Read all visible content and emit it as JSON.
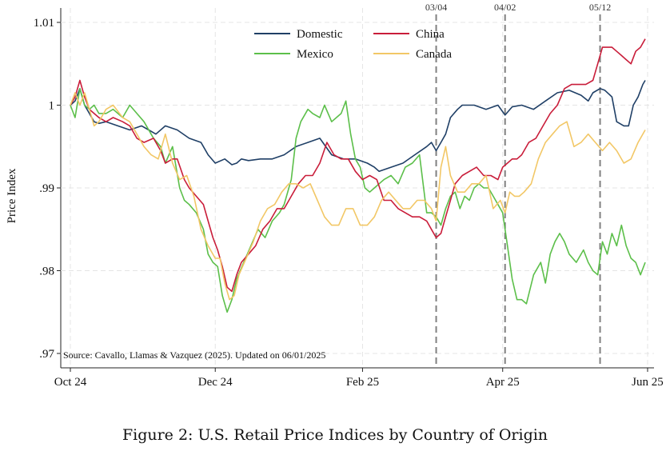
{
  "chart_data": {
    "type": "line",
    "title": "",
    "ylabel": "Price Index",
    "xlabel": "",
    "ylim": [
      0.97,
      1.01
    ],
    "xlim": [
      0,
      242
    ],
    "x_ticks": [
      {
        "label": "Oct 24",
        "x": 0
      },
      {
        "label": "Dec 24",
        "x": 61
      },
      {
        "label": "Feb 25",
        "x": 123
      },
      {
        "label": "Apr 25",
        "x": 182
      },
      {
        "label": "Jun 25",
        "x": 243
      }
    ],
    "y_ticks": [
      {
        "label": ".97",
        "value": 0.97
      },
      {
        "label": ".98",
        "value": 0.98
      },
      {
        "label": ".99",
        "value": 0.99
      },
      {
        "label": "1",
        "value": 1.0
      },
      {
        "label": "1.01",
        "value": 1.01
      }
    ],
    "vlines": [
      {
        "label": "03/04",
        "x": 154
      },
      {
        "label": "04/02",
        "x": 183
      },
      {
        "label": "05/12",
        "x": 223
      }
    ],
    "legend_position": "top-center",
    "annotation": "Source: Cavallo, Llamas & Vazquez (2025). Updated on 06/01/2025",
    "series": [
      {
        "name": "Domestic",
        "color": "#1f3f66",
        "x": [
          0,
          2,
          4,
          6,
          8,
          10,
          12,
          15,
          20,
          25,
          30,
          33,
          36,
          40,
          45,
          50,
          55,
          58,
          61,
          65,
          68,
          70,
          72,
          75,
          80,
          85,
          90,
          95,
          100,
          105,
          110,
          115,
          120,
          125,
          128,
          130,
          135,
          140,
          145,
          150,
          152,
          154,
          156,
          158,
          160,
          163,
          165,
          170,
          175,
          180,
          183,
          186,
          190,
          195,
          200,
          205,
          210,
          215,
          218,
          220,
          223,
          225,
          228,
          230,
          233,
          235,
          237,
          239,
          241,
          242
        ],
        "values": [
          1.0,
          1.0005,
          1.002,
          1.0,
          0.999,
          0.998,
          0.9978,
          0.998,
          0.9975,
          0.997,
          0.9975,
          0.997,
          0.9965,
          0.9975,
          0.997,
          0.996,
          0.9955,
          0.994,
          0.993,
          0.9935,
          0.9928,
          0.993,
          0.9935,
          0.9933,
          0.9935,
          0.9935,
          0.994,
          0.995,
          0.9955,
          0.996,
          0.994,
          0.9935,
          0.9935,
          0.993,
          0.9925,
          0.992,
          0.9925,
          0.993,
          0.994,
          0.995,
          0.9955,
          0.9945,
          0.9955,
          0.9965,
          0.9985,
          0.9995,
          1.0,
          1.0,
          0.9995,
          1.0,
          0.9988,
          0.9998,
          1.0,
          0.9995,
          1.0005,
          1.0015,
          1.0018,
          1.0012,
          1.0005,
          1.0015,
          1.002,
          1.0018,
          1.001,
          0.998,
          0.9975,
          0.9975,
          1.0,
          1.001,
          1.0025,
          1.003
        ]
      },
      {
        "name": "Mexico",
        "color": "#5cbf4a",
        "x": [
          0,
          2,
          4,
          6,
          8,
          10,
          12,
          15,
          18,
          22,
          25,
          28,
          31,
          35,
          38,
          40,
          43,
          46,
          48,
          50,
          53,
          56,
          58,
          60,
          62,
          64,
          66,
          68,
          70,
          73,
          76,
          79,
          82,
          85,
          88,
          90,
          93,
          95,
          97,
          100,
          102,
          105,
          107,
          110,
          112,
          114,
          116,
          118,
          120,
          122,
          124,
          126,
          128,
          130,
          132,
          135,
          138,
          141,
          144,
          147,
          150,
          152,
          154,
          156,
          158,
          160,
          162,
          164,
          166,
          168,
          170,
          172,
          174,
          176,
          178,
          180,
          182,
          184,
          186,
          188,
          190,
          192,
          195,
          198,
          200,
          202,
          204,
          206,
          208,
          210,
          213,
          216,
          218,
          220,
          222,
          224,
          226,
          228,
          230,
          232,
          234,
          236,
          238,
          240,
          242
        ],
        "values": [
          1.0,
          0.9985,
          1.002,
          1.0,
          0.9995,
          1.0,
          0.999,
          0.999,
          0.9995,
          0.9985,
          1.0,
          0.999,
          0.998,
          0.996,
          0.995,
          0.993,
          0.995,
          0.99,
          0.9885,
          0.988,
          0.987,
          0.985,
          0.982,
          0.981,
          0.9805,
          0.977,
          0.975,
          0.9765,
          0.979,
          0.981,
          0.983,
          0.985,
          0.984,
          0.986,
          0.987,
          0.988,
          0.991,
          0.996,
          0.998,
          0.9995,
          0.999,
          0.9985,
          1.0,
          0.998,
          0.9985,
          0.999,
          1.0005,
          0.9965,
          0.9935,
          0.9925,
          0.99,
          0.9895,
          0.99,
          0.9905,
          0.991,
          0.9915,
          0.9905,
          0.9925,
          0.993,
          0.994,
          0.987,
          0.987,
          0.9865,
          0.9855,
          0.9875,
          0.989,
          0.9895,
          0.9875,
          0.989,
          0.9885,
          0.99,
          0.9905,
          0.99,
          0.99,
          0.989,
          0.988,
          0.987,
          0.983,
          0.979,
          0.9765,
          0.9765,
          0.976,
          0.9795,
          0.981,
          0.9785,
          0.982,
          0.9835,
          0.9845,
          0.9835,
          0.982,
          0.981,
          0.9825,
          0.981,
          0.98,
          0.9795,
          0.9835,
          0.982,
          0.9845,
          0.983,
          0.9855,
          0.983,
          0.9815,
          0.981,
          0.9795,
          0.981
        ]
      },
      {
        "name": "China",
        "color": "#c91d3a",
        "x": [
          0,
          2,
          4,
          6,
          8,
          10,
          12,
          15,
          18,
          22,
          25,
          28,
          31,
          35,
          38,
          40,
          43,
          45,
          48,
          50,
          53,
          56,
          58,
          60,
          62,
          64,
          66,
          68,
          70,
          72,
          75,
          78,
          81,
          84,
          87,
          90,
          93,
          96,
          99,
          102,
          105,
          108,
          111,
          114,
          117,
          120,
          123,
          126,
          129,
          132,
          135,
          138,
          141,
          144,
          147,
          150,
          152,
          154,
          156,
          158,
          160,
          162,
          165,
          168,
          171,
          174,
          177,
          180,
          182,
          184,
          186,
          188,
          190,
          193,
          196,
          199,
          202,
          205,
          208,
          211,
          214,
          217,
          220,
          222,
          224,
          226,
          228,
          230,
          232,
          234,
          236,
          238,
          240,
          242
        ],
        "values": [
          1.0,
          1.001,
          1.003,
          1.001,
          0.9995,
          0.999,
          0.9985,
          0.998,
          0.9985,
          0.998,
          0.9975,
          0.996,
          0.9955,
          0.996,
          0.9945,
          0.993,
          0.9935,
          0.9935,
          0.991,
          0.99,
          0.989,
          0.988,
          0.986,
          0.984,
          0.9825,
          0.9805,
          0.978,
          0.9775,
          0.9795,
          0.981,
          0.982,
          0.983,
          0.985,
          0.986,
          0.9875,
          0.9875,
          0.989,
          0.9905,
          0.9915,
          0.9915,
          0.993,
          0.9955,
          0.994,
          0.9935,
          0.9935,
          0.992,
          0.991,
          0.9915,
          0.991,
          0.9885,
          0.9885,
          0.9875,
          0.987,
          0.9865,
          0.9865,
          0.986,
          0.985,
          0.984,
          0.9845,
          0.9865,
          0.9885,
          0.9905,
          0.9915,
          0.992,
          0.9925,
          0.9915,
          0.9915,
          0.991,
          0.9925,
          0.993,
          0.9935,
          0.9935,
          0.994,
          0.9955,
          0.996,
          0.9975,
          0.999,
          1.0,
          1.002,
          1.0025,
          1.0025,
          1.0025,
          1.003,
          1.005,
          1.007,
          1.007,
          1.007,
          1.0065,
          1.006,
          1.0055,
          1.005,
          1.0065,
          1.007,
          1.008
        ]
      },
      {
        "name": "Canada",
        "color": "#f2c766",
        "x": [
          0,
          2,
          4,
          6,
          8,
          10,
          12,
          15,
          18,
          22,
          25,
          28,
          31,
          34,
          37,
          40,
          43,
          46,
          49,
          52,
          55,
          58,
          61,
          63,
          65,
          67,
          69,
          71,
          74,
          77,
          80,
          83,
          86,
          89,
          92,
          95,
          98,
          101,
          104,
          107,
          110,
          113,
          116,
          119,
          122,
          125,
          128,
          131,
          134,
          137,
          140,
          143,
          146,
          149,
          152,
          154,
          156,
          158,
          160,
          163,
          166,
          169,
          172,
          175,
          178,
          181,
          183,
          185,
          187,
          189,
          191,
          194,
          197,
          200,
          203,
          206,
          209,
          212,
          215,
          218,
          221,
          224,
          227,
          230,
          233,
          236,
          239,
          242
        ],
        "values": [
          1.0,
          1.0015,
          1.0,
          1.0015,
          0.9995,
          0.9975,
          0.998,
          0.9995,
          1.0,
          0.9985,
          0.998,
          0.9965,
          0.995,
          0.994,
          0.9935,
          0.9965,
          0.993,
          0.991,
          0.9915,
          0.989,
          0.985,
          0.983,
          0.9815,
          0.9815,
          0.9785,
          0.9765,
          0.977,
          0.9795,
          0.9815,
          0.9835,
          0.986,
          0.9875,
          0.988,
          0.9895,
          0.9905,
          0.9905,
          0.99,
          0.9905,
          0.9885,
          0.9865,
          0.9855,
          0.9855,
          0.9875,
          0.9875,
          0.9855,
          0.9855,
          0.9865,
          0.9885,
          0.9895,
          0.9885,
          0.9875,
          0.9875,
          0.9885,
          0.9885,
          0.9875,
          0.986,
          0.9925,
          0.995,
          0.9915,
          0.9895,
          0.9895,
          0.9905,
          0.9905,
          0.9915,
          0.9875,
          0.9885,
          0.987,
          0.9895,
          0.989,
          0.989,
          0.9895,
          0.9905,
          0.9935,
          0.9955,
          0.9965,
          0.9975,
          0.998,
          0.995,
          0.9955,
          0.9965,
          0.9955,
          0.9945,
          0.9955,
          0.9945,
          0.993,
          0.9935,
          0.9955,
          0.997
        ]
      }
    ]
  },
  "caption": "Figure 2: U.S. Retail Price Indices by Country of Origin"
}
